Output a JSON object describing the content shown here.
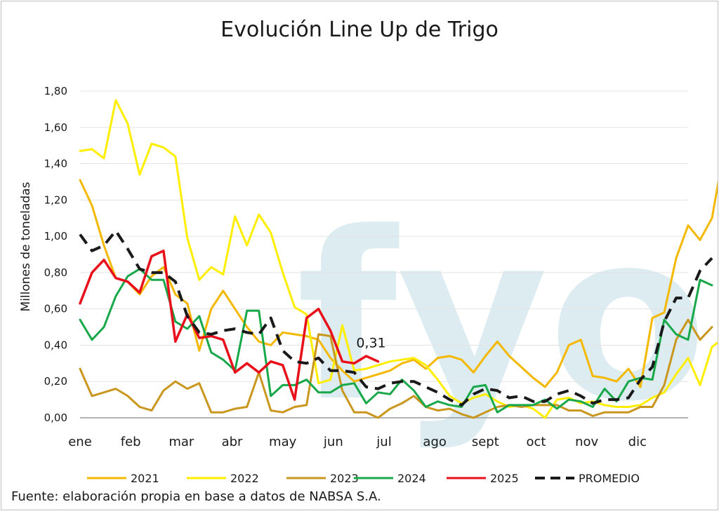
{
  "chart_data": {
    "type": "line",
    "title": "Evolución Line Up de Trigo",
    "ylabel": "Millones de toneladas",
    "xlabel": "",
    "ylim": [
      0,
      1.8
    ],
    "yticks": [
      "0,00",
      "0,20",
      "0,40",
      "0,60",
      "0,80",
      "1,00",
      "1,20",
      "1,40",
      "1,60",
      "1,80"
    ],
    "ytick_values": [
      0,
      0.2,
      0.4,
      0.6,
      0.8,
      1.0,
      1.2,
      1.4,
      1.6,
      1.8
    ],
    "months": [
      "ene",
      "feb",
      "mar",
      "abr",
      "may",
      "jun",
      "jul",
      "ago",
      "sept",
      "oct",
      "nov",
      "dic"
    ],
    "weeks_per_year": 52,
    "grid": true,
    "legend_position": "bottom",
    "annotation": {
      "text": "0,31",
      "series": "2025",
      "week": 37
    },
    "watermark": "fyo",
    "source": "Fuente: elaboración propia en base a datos de NABSA S.A.",
    "series": [
      {
        "name": "2021",
        "color": "#f5b800",
        "dash": false,
        "values": [
          1.31,
          1.17,
          0.95,
          0.77,
          0.75,
          0.68,
          0.78,
          0.83,
          0.68,
          0.63,
          0.37,
          0.6,
          0.7,
          0.6,
          0.5,
          0.42,
          0.4,
          0.47,
          0.46,
          0.45,
          0.43,
          0.33,
          0.26,
          0.2,
          0.22,
          0.24,
          0.26,
          0.3,
          0.32,
          0.27,
          0.33,
          0.34,
          0.32,
          0.25,
          0.34,
          0.42,
          0.34,
          0.28,
          0.22,
          0.17,
          0.25,
          0.4,
          0.43,
          0.23,
          0.22,
          0.2,
          0.27,
          0.17,
          0.55,
          0.58,
          0.88,
          1.06,
          0.98,
          1.1,
          1.47
        ]
      },
      {
        "name": "2022",
        "color": "#ffee00",
        "dash": false,
        "values": [
          1.47,
          1.48,
          1.43,
          1.75,
          1.62,
          1.34,
          1.51,
          1.49,
          1.44,
          0.99,
          0.76,
          0.83,
          0.79,
          1.11,
          0.95,
          1.12,
          1.02,
          0.8,
          0.61,
          0.57,
          0.19,
          0.21,
          0.51,
          0.26,
          0.27,
          0.29,
          0.31,
          0.32,
          0.33,
          0.29,
          0.21,
          0.12,
          0.08,
          0.11,
          0.13,
          0.09,
          0.06,
          0.07,
          0.05,
          0.0,
          0.1,
          0.11,
          0.08,
          0.09,
          0.07,
          0.06,
          0.06,
          0.07,
          0.11,
          0.14,
          0.24,
          0.33,
          0.18,
          0.39,
          0.44
        ]
      },
      {
        "name": "2023",
        "color": "#c9961e",
        "dash": false,
        "values": [
          0.27,
          0.12,
          0.14,
          0.16,
          0.12,
          0.06,
          0.04,
          0.15,
          0.2,
          0.16,
          0.19,
          0.03,
          0.03,
          0.05,
          0.06,
          0.25,
          0.04,
          0.03,
          0.06,
          0.07,
          0.46,
          0.45,
          0.15,
          0.03,
          0.03,
          0.0,
          0.05,
          0.08,
          0.12,
          0.06,
          0.04,
          0.05,
          0.02,
          0.0,
          0.03,
          0.06,
          0.07,
          0.06,
          0.07,
          0.07,
          0.07,
          0.04,
          0.04,
          0.01,
          0.03,
          0.03,
          0.03,
          0.06,
          0.06,
          0.18,
          0.43,
          0.54,
          0.43,
          0.5
        ]
      },
      {
        "name": "2024",
        "color": "#18a84a",
        "dash": false,
        "values": [
          0.54,
          0.43,
          0.5,
          0.67,
          0.78,
          0.82,
          0.76,
          0.76,
          0.53,
          0.49,
          0.56,
          0.36,
          0.32,
          0.26,
          0.59,
          0.59,
          0.12,
          0.18,
          0.18,
          0.21,
          0.14,
          0.14,
          0.18,
          0.19,
          0.08,
          0.14,
          0.13,
          0.21,
          0.15,
          0.06,
          0.09,
          0.07,
          0.06,
          0.17,
          0.18,
          0.03,
          0.07,
          0.07,
          0.07,
          0.1,
          0.05,
          0.1,
          0.09,
          0.06,
          0.16,
          0.09,
          0.2,
          0.22,
          0.21,
          0.54,
          0.46,
          0.43,
          0.76,
          0.73
        ]
      },
      {
        "name": "2025",
        "color": "#e8101a",
        "dash": false,
        "values": [
          0.63,
          0.8,
          0.87,
          0.77,
          0.75,
          0.69,
          0.89,
          0.92,
          0.42,
          0.57,
          0.44,
          0.45,
          0.43,
          0.25,
          0.3,
          0.25,
          0.31,
          0.29,
          0.1,
          0.55,
          0.6,
          0.48,
          0.31,
          0.3,
          0.34,
          0.31
        ]
      },
      {
        "name": "PROMEDIO",
        "color": "#1a1a1a",
        "dash": true,
        "values": [
          1.01,
          0.92,
          0.95,
          1.03,
          0.93,
          0.82,
          0.8,
          0.8,
          0.75,
          0.56,
          0.47,
          0.46,
          0.48,
          0.49,
          0.47,
          0.46,
          0.55,
          0.37,
          0.31,
          0.3,
          0.33,
          0.26,
          0.26,
          0.25,
          0.17,
          0.16,
          0.19,
          0.2,
          0.2,
          0.17,
          0.14,
          0.1,
          0.07,
          0.13,
          0.16,
          0.15,
          0.11,
          0.12,
          0.09,
          0.09,
          0.13,
          0.15,
          0.12,
          0.08,
          0.1,
          0.1,
          0.11,
          0.21,
          0.28,
          0.53,
          0.66,
          0.66,
          0.81,
          0.88
        ]
      }
    ]
  }
}
